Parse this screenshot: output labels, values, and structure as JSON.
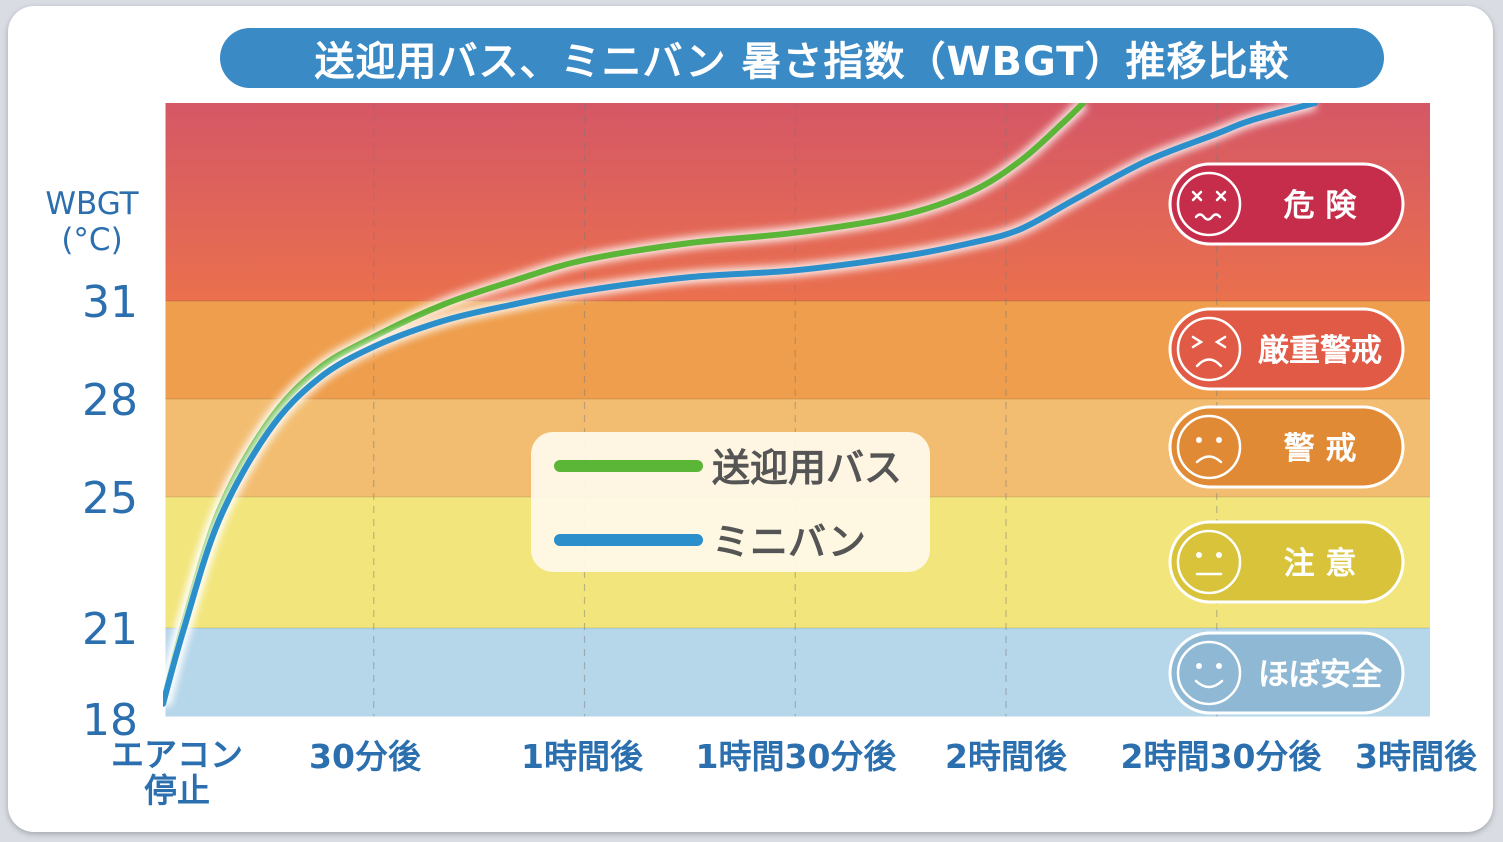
{
  "chart_data": {
    "type": "line",
    "title": "送迎用バス、ミニバン 暑さ指数（WBGT）推移比較",
    "ylabel_lines": [
      "WBGT",
      "(°C)"
    ],
    "ytick_labels": [
      "31",
      "28",
      "25",
      "21",
      "18"
    ],
    "ytick_values": [
      31,
      28,
      25,
      21,
      18
    ],
    "xtick_labels": [
      "エアコン停止",
      "30分後",
      "1時間後",
      "1時間30分後",
      "2時間後",
      "2時間30分後",
      "3時間後"
    ],
    "x_minutes": [
      0,
      30,
      60,
      90,
      120,
      150,
      180
    ],
    "ylim": [
      18,
      36.8
    ],
    "bands": [
      {
        "label": "危 険",
        "from": 31,
        "to": 36.8,
        "color": "#e3675a"
      },
      {
        "label": "厳重警戒",
        "from": 28,
        "to": 31,
        "color": "#ee9e4c"
      },
      {
        "label": "警 戒",
        "from": 25,
        "to": 28,
        "color": "#f2bd70"
      },
      {
        "label": "注 意",
        "from": 21,
        "to": 25,
        "color": "#f2e57c"
      },
      {
        "label": "ほぼ安全",
        "from": 18,
        "to": 21,
        "color": "#b6d6ea"
      }
    ],
    "series": [
      {
        "name": "送迎用バス",
        "color": "#5bb536",
        "x": [
          0,
          3,
          8,
          15,
          22,
          30,
          40,
          50,
          60,
          75,
          90,
          105,
          115,
          122,
          128,
          131
        ],
        "y": [
          18.5,
          21.2,
          24.6,
          27.3,
          28.9,
          29.9,
          30.9,
          31.6,
          32.2,
          32.7,
          33.0,
          33.5,
          34.2,
          35.1,
          36.2,
          36.8
        ]
      },
      {
        "name": "ミニバン",
        "color": "#2a8fcb",
        "x": [
          0,
          3,
          8,
          15,
          22,
          30,
          40,
          50,
          60,
          75,
          90,
          105,
          115,
          122,
          130,
          140,
          150,
          155,
          164
        ],
        "y": [
          18.5,
          21.0,
          24.3,
          27.0,
          28.6,
          29.6,
          30.4,
          30.9,
          31.3,
          31.7,
          31.9,
          32.3,
          32.7,
          33.1,
          34.0,
          35.1,
          35.9,
          36.3,
          36.8
        ]
      }
    ],
    "legend": [
      "送迎用バス",
      "ミニバン"
    ],
    "legend_position": "center"
  }
}
